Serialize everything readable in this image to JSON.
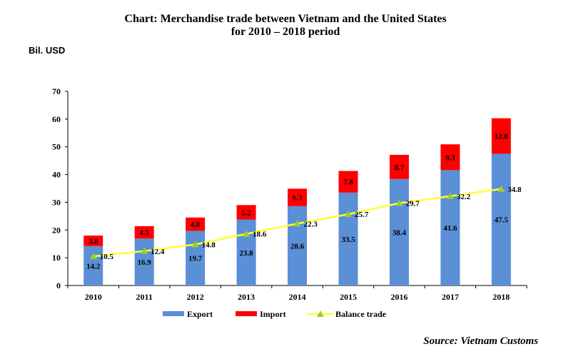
{
  "chart_data": {
    "type": "bar",
    "title_line1": "Chart: Merchandise trade between Vietnam and the United States",
    "title_line2": "for 2010 – 2018 period",
    "ylabel": "Bil. USD",
    "ylim": [
      0,
      70
    ],
    "yticks": [
      "0",
      "10",
      "20",
      "30",
      "40",
      "50",
      "60",
      "70"
    ],
    "categories": [
      "2010",
      "2011",
      "2012",
      "2013",
      "2014",
      "2015",
      "2016",
      "2017",
      "2018"
    ],
    "series": [
      {
        "name": "Export",
        "kind": "bar",
        "color": "#5b8fd6",
        "values": [
          14.2,
          16.9,
          19.7,
          23.8,
          28.6,
          33.5,
          38.4,
          41.6,
          47.5
        ],
        "labels": [
          "14.2",
          "16.9",
          "19.7",
          "23.8",
          "28.6",
          "33.5",
          "38.4",
          "41.6",
          "47.5"
        ]
      },
      {
        "name": "Import",
        "kind": "bar",
        "color": "#ff0000",
        "values": [
          3.8,
          4.5,
          4.8,
          5.2,
          6.3,
          7.8,
          8.7,
          9.3,
          12.8
        ],
        "labels": [
          "3.8",
          "4.5",
          "4.8",
          "5.2",
          "6.3",
          "7.8",
          "8.7",
          "9.3",
          "12.8"
        ]
      },
      {
        "name": "Balance trade",
        "kind": "line",
        "color": "#ffff33",
        "marker_color": "#9acd32",
        "values": [
          10.5,
          12.4,
          14.8,
          18.6,
          22.3,
          25.7,
          29.7,
          32.2,
          34.8
        ],
        "labels": [
          "10.5",
          "12.4",
          "14.8",
          "18.6",
          "22.3",
          "25.7",
          "29.7",
          "32.2",
          "34.8"
        ]
      }
    ],
    "stacked": true,
    "grid": false,
    "legend": "bottom-center",
    "source": "Source: Vietnam Customs"
  }
}
